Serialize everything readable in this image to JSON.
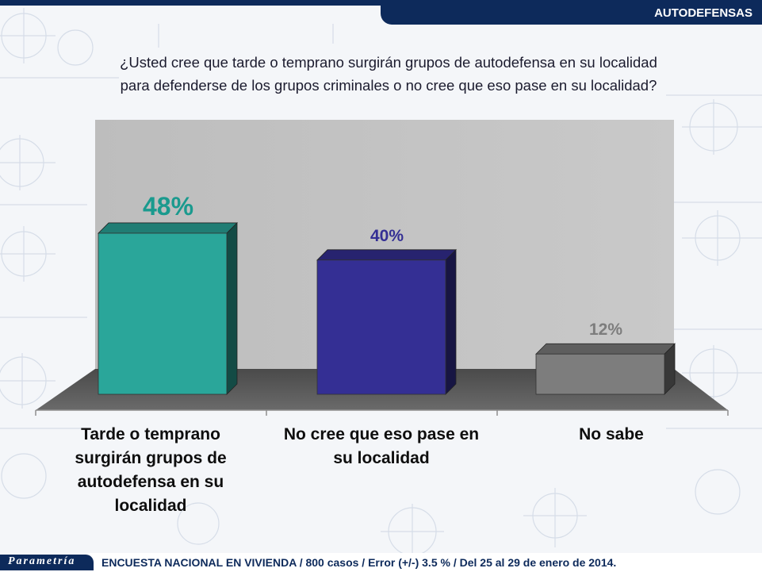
{
  "header": {
    "section_label": "AUTODEFENSAS"
  },
  "question": {
    "line1": "¿Usted cree que tarde o temprano surgirán grupos de autodefensa en su localidad",
    "line2": "para defenderse de los grupos criminales o no cree que eso pase en su localidad?"
  },
  "chart_data": {
    "type": "bar",
    "title": "",
    "xlabel": "",
    "ylabel": "",
    "ylim": [
      0,
      60
    ],
    "grid": false,
    "legend": "none",
    "categories": [
      "Tarde o temprano surgirán grupos de autodefensa en su localidad",
      "No cree que eso pase en su localidad",
      "No sabe"
    ],
    "values": [
      48,
      40,
      12
    ],
    "value_labels": [
      "48%",
      "40%",
      "12%"
    ],
    "colors": [
      "#2aa69a",
      "#342f94",
      "#7d7d7d"
    ],
    "label_colors": [
      "#1a9a8e",
      "#342f94",
      "#7d7d7d"
    ]
  },
  "footer": {
    "logo_text": "Parametría",
    "note": "ENCUESTA NACIONAL EN VIVIENDA / 800 casos / Error (+/-) 3.5 % / Del 25 al 29 de enero de 2014."
  }
}
